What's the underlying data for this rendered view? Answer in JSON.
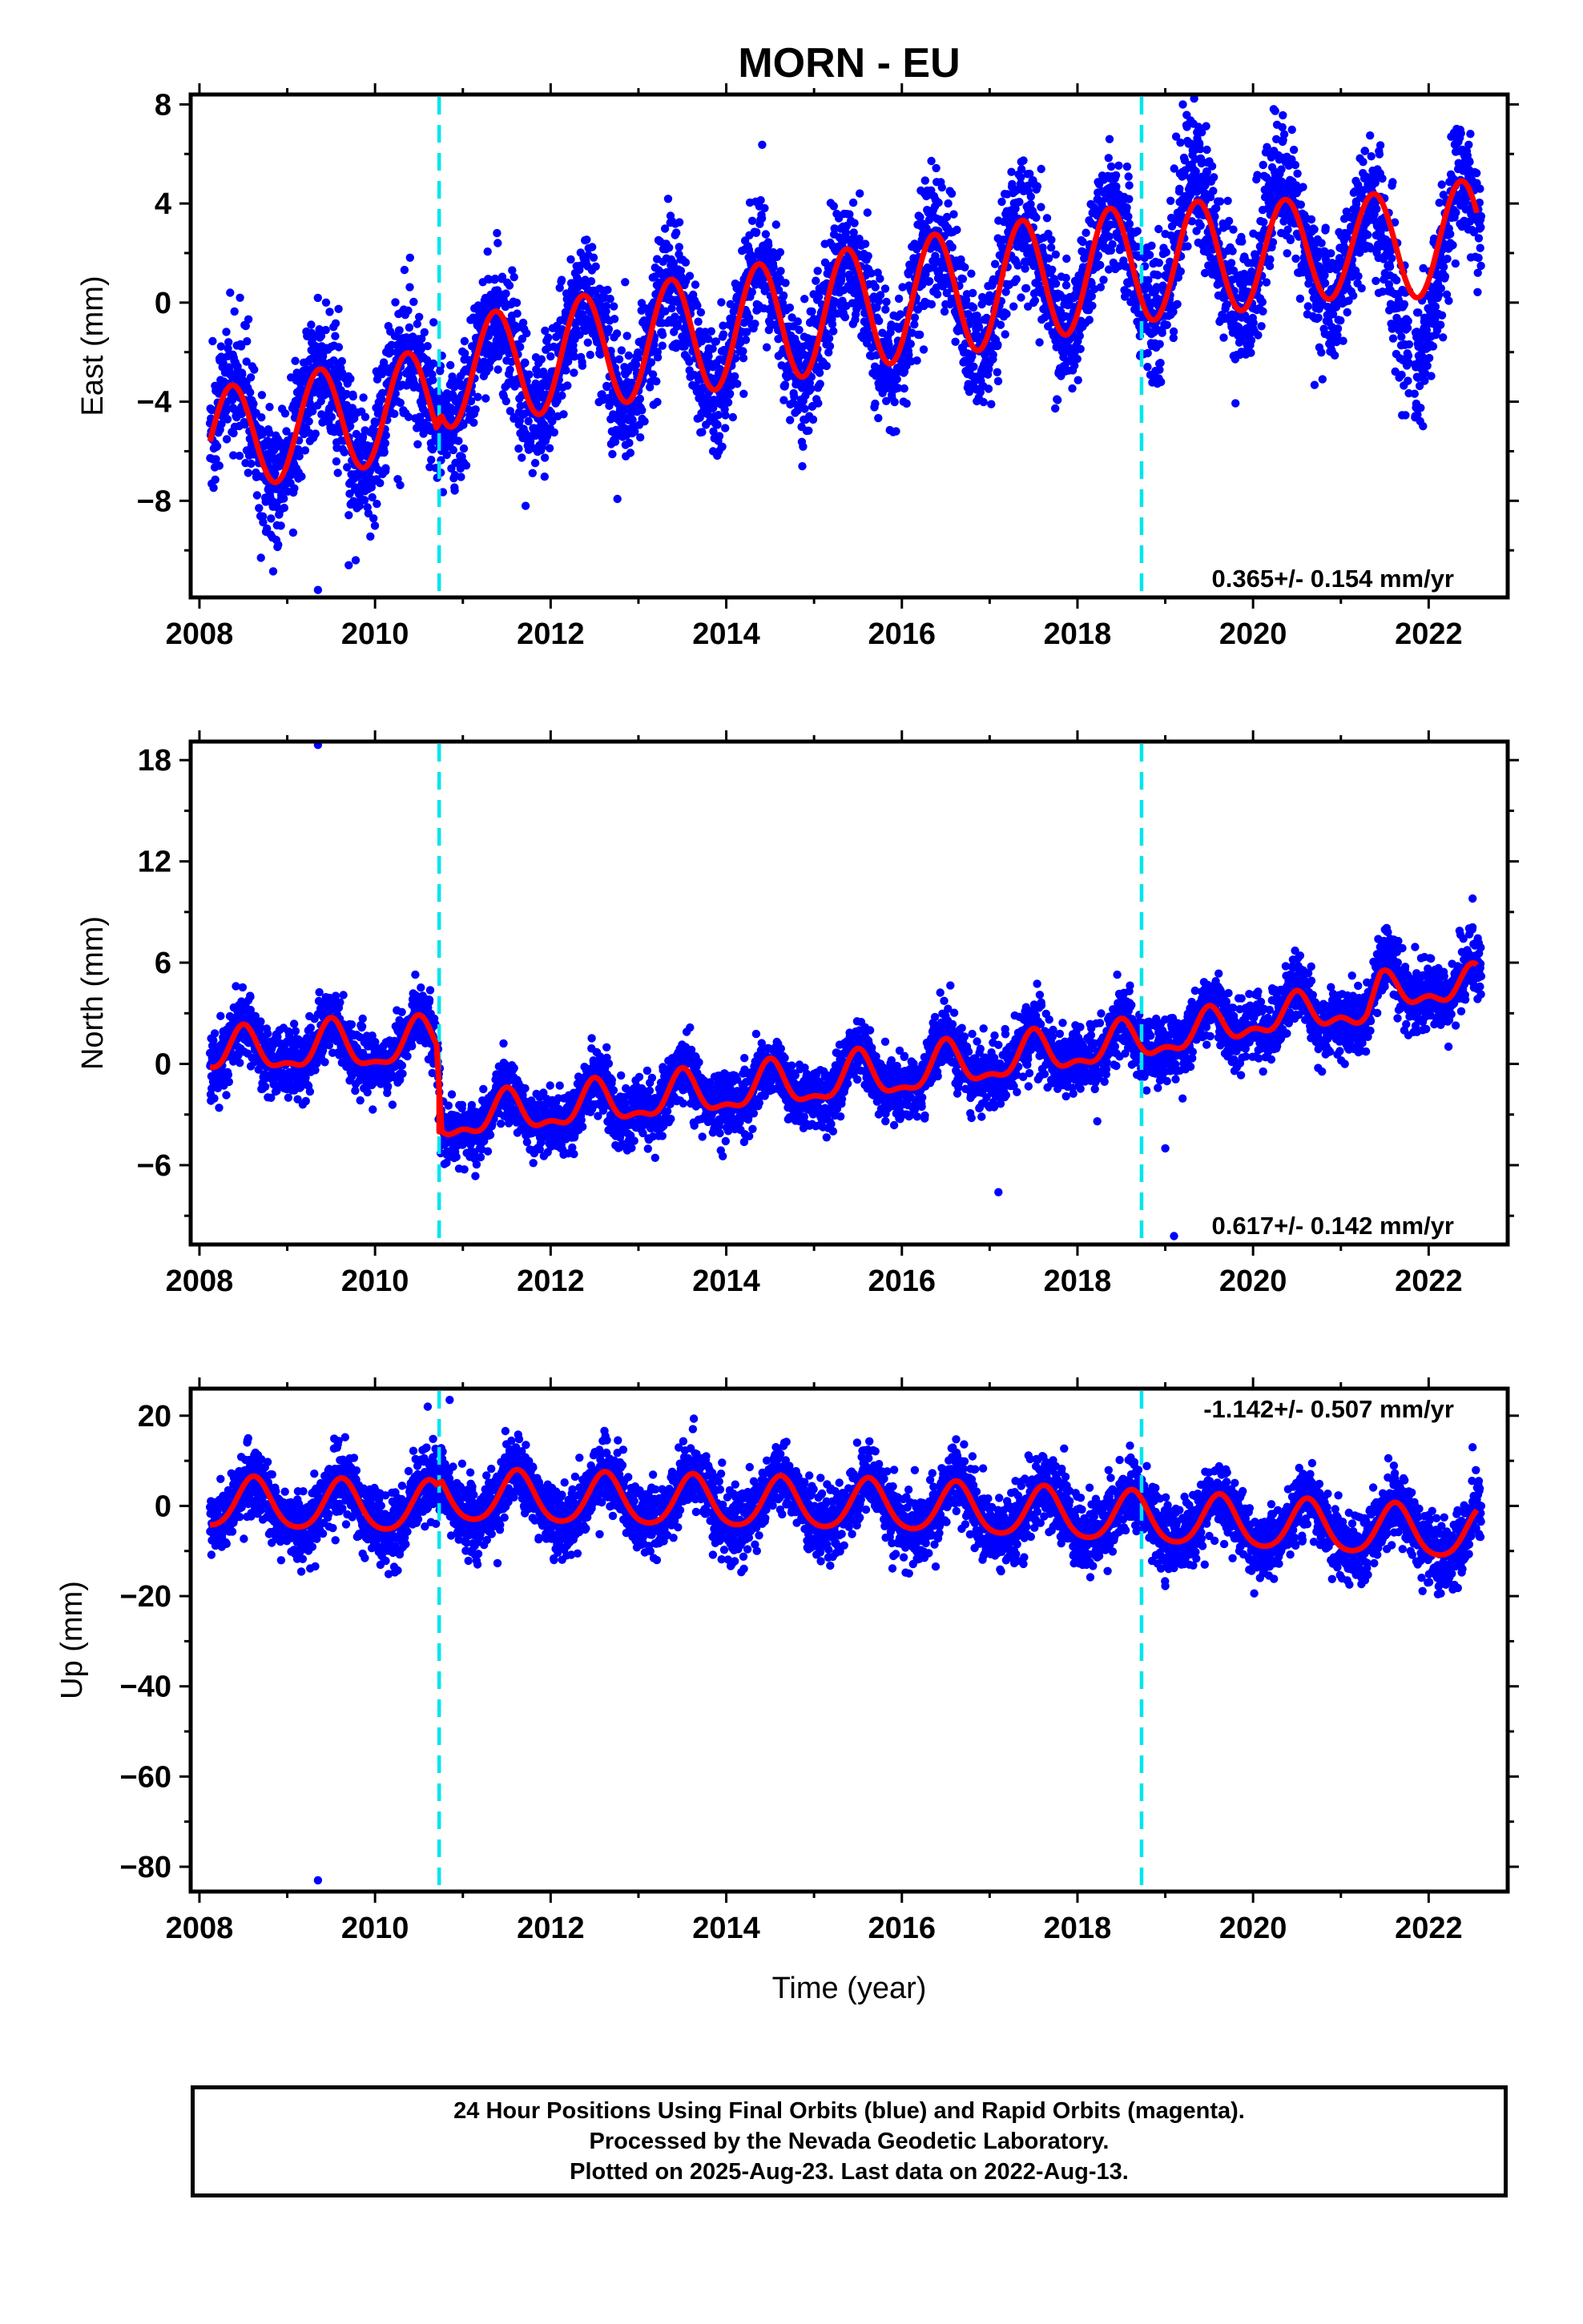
{
  "title": "MORN - EU",
  "colors": {
    "data_points": "#0000ff",
    "model_fit": "#ff0000",
    "offset_lines": "#00e5ee",
    "frame": "#000000"
  },
  "chart_data": [
    {
      "type": "scatter",
      "component": "East",
      "ylabel": "East (mm)",
      "xlabel": "",
      "xlim": [
        2007.9,
        2022.9
      ],
      "ylim": [
        -11.9,
        8.4
      ],
      "x_ticks": [
        2008,
        2010,
        2012,
        2014,
        2016,
        2018,
        2020,
        2022
      ],
      "y_ticks": [
        -8,
        -4,
        0,
        4,
        8
      ],
      "offset_lines_x": [
        2010.73,
        2018.73
      ],
      "rate_label": "0.365+/- 0.154 mm/yr",
      "rate_position": "bottom-right",
      "model": {
        "start": 2008.12,
        "end": 2022.55,
        "step_at": 2010.73,
        "anchors": [
          [
            2008.12,
            -5.6
          ],
          [
            2010.7,
            -4.0
          ],
          [
            2010.76,
            -2.9
          ],
          [
            2018.7,
            1.6
          ],
          [
            2022.55,
            2.6
          ]
        ],
        "amplitude_anchors": [
          [
            2008.12,
            2.1
          ],
          [
            2011.3,
            2.2
          ],
          [
            2014.0,
            2.4
          ],
          [
            2017.0,
            2.5
          ],
          [
            2019.5,
            2.3
          ],
          [
            2021.0,
            2.0
          ],
          [
            2022.55,
            2.4
          ]
        ],
        "peak_time": 0.37,
        "semiannual_amplitude": 0.0
      },
      "data_spec": {
        "segments": [
          [
            2008.12,
            2021.78
          ],
          [
            2021.84,
            2022.6
          ]
        ],
        "scatter": 1.3,
        "departures": [
          [
            2019.0,
            2019.6,
            3.0,
            0.6
          ],
          [
            2020.0,
            2020.5,
            2.8,
            0.6
          ],
          [
            2021.3,
            2022.3,
            -3.2,
            0.5
          ]
        ],
        "outliers": [
          [
            2009.35,
            -11.6
          ],
          [
            2009.7,
            -10.6
          ],
          [
            2009.78,
            -10.4
          ],
          [
            2008.7,
            -10.3
          ],
          [
            2013.85,
            -6.0
          ],
          [
            2008.35,
            0.4
          ],
          [
            2019.2,
            8.0
          ]
        ]
      }
    },
    {
      "type": "scatter",
      "component": "North",
      "ylabel": "North (mm)",
      "xlabel": "",
      "xlim": [
        2007.9,
        2022.9
      ],
      "ylim": [
        -10.7,
        19.1
      ],
      "x_ticks": [
        2008,
        2010,
        2012,
        2014,
        2016,
        2018,
        2020,
        2022
      ],
      "y_ticks": [
        -6,
        0,
        6,
        12,
        18
      ],
      "offset_lines_x": [
        2010.73,
        2018.73
      ],
      "rate_label": "0.617+/- 0.142 mm/yr",
      "rate_position": "bottom-right",
      "model": {
        "start": 2008.12,
        "end": 2022.55,
        "step_at": 2010.73,
        "anchors": [
          [
            2008.12,
            0.6
          ],
          [
            2010.7,
            1.2
          ],
          [
            2010.76,
            -3.4
          ],
          [
            2016.0,
            -0.6
          ],
          [
            2019.0,
            1.5
          ],
          [
            2020.5,
            3.0
          ],
          [
            2021.3,
            3.1
          ],
          [
            2021.45,
            4.2
          ],
          [
            2022.55,
            4.6
          ]
        ],
        "amplitude_anchors": [
          [
            2008.12,
            1.1
          ],
          [
            2010.0,
            1.4
          ],
          [
            2011.0,
            1.1
          ],
          [
            2016.0,
            1.3
          ],
          [
            2019.0,
            1.0
          ],
          [
            2021.0,
            0.8
          ],
          [
            2022.55,
            0.9
          ]
        ],
        "peak_time": 0.5,
        "semiannual_amplitude": 0.5
      },
      "data_spec": {
        "segments": [
          [
            2008.12,
            2022.6
          ]
        ],
        "scatter": 0.95,
        "departures": [
          [
            2019.5,
            2019.75,
            2.5,
            0.5
          ],
          [
            2021.3,
            2021.9,
            2.0,
            0.7
          ],
          [
            2020.7,
            2021.2,
            -0.8,
            0.6
          ]
        ],
        "outliers": [
          [
            2009.35,
            18.9
          ],
          [
            2017.1,
            -7.6
          ],
          [
            2019.1,
            -10.2
          ],
          [
            2019.0,
            -5.0
          ],
          [
            2022.5,
            9.8
          ]
        ]
      }
    },
    {
      "type": "scatter",
      "component": "Up",
      "ylabel": "Up (mm)",
      "xlabel": "Time (year)",
      "xlim": [
        2007.9,
        2022.9
      ],
      "ylim": [
        -85.5,
        26.0
      ],
      "x_ticks": [
        2008,
        2010,
        2012,
        2014,
        2016,
        2018,
        2020,
        2022
      ],
      "y_ticks": [
        -80,
        -60,
        -40,
        -20,
        0,
        20
      ],
      "offset_lines_x": [
        2010.73,
        2018.73
      ],
      "rate_label": "-1.142+/- 0.507 mm/yr",
      "rate_position": "top-right",
      "model": {
        "start": 2008.12,
        "end": 2022.55,
        "step_at": 2010.73,
        "anchors": [
          [
            2008.12,
            0.5
          ],
          [
            2010.7,
            -0.6
          ],
          [
            2010.76,
            2.0
          ],
          [
            2016.0,
            -0.2
          ],
          [
            2022.55,
            -6.5
          ]
        ],
        "amplitude_anchors": [
          [
            2008.12,
            5.5
          ],
          [
            2011.5,
            5.6
          ],
          [
            2016.0,
            5.5
          ],
          [
            2022.55,
            5.6
          ]
        ],
        "peak_time": 0.62,
        "semiannual_amplitude": 0.8
      },
      "data_spec": {
        "segments": [
          [
            2008.12,
            2022.6
          ]
        ],
        "scatter": 3.8,
        "departures": [],
        "outliers": [
          [
            2009.35,
            -83.0
          ],
          [
            2010.85,
            23.5
          ],
          [
            2010.6,
            22.0
          ],
          [
            2022.5,
            13.0
          ]
        ]
      }
    }
  ],
  "footer": {
    "line1": "24 Hour Positions Using Final Orbits (blue) and Rapid Orbits (magenta).",
    "line2": "Processed by the Nevada Geodetic Laboratory.",
    "line3": "Plotted on 2025-Aug-23. Last data on 2022-Aug-13."
  }
}
